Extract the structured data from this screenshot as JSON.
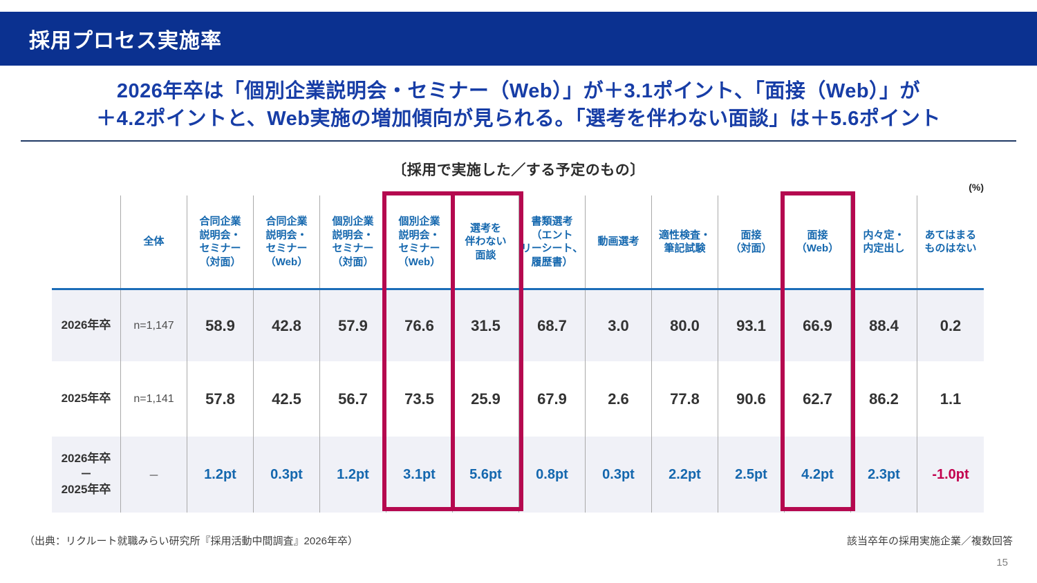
{
  "header": {
    "title": "採用プロセス実施率"
  },
  "headline": {
    "line1": "2026年卒は「個別企業説明会・セミナー（Web）」が＋3.1ポイント、「面接（Web）」が",
    "line2": "＋4.2ポイントと、Web実施の増加傾向が見られる。「選考を伴わない面談」は＋5.6ポイント"
  },
  "table": {
    "caption": "〔採用で実施した／する予定のもの〕",
    "unit_label": "(%)",
    "columns": [
      "全体",
      "合同企業\n説明会・\nセミナー\n（対面）",
      "合同企業\n説明会・\nセミナー\n（Web）",
      "個別企業\n説明会・\nセミナー\n（対面）",
      "個別企業\n説明会・\nセミナー\n（Web）",
      "選考を\n伴わない\n面談",
      "書類選考\n（エント\nリーシート、\n履歴書）",
      "動画選考",
      "適性検査・\n筆記試験",
      "面接\n（対面）",
      "面接\n（Web）",
      "内々定・\n内定出し",
      "あてはまる\nものはない"
    ],
    "highlighted_columns": [
      "個別企業説明会・セミナー（Web）",
      "選考を伴わない面談",
      "面接（Web）"
    ],
    "rows": [
      {
        "label": "2026年卒",
        "n": "n=1,147",
        "values": [
          "58.9",
          "42.8",
          "57.9",
          "76.6",
          "31.5",
          "68.7",
          "3.0",
          "80.0",
          "93.1",
          "66.9",
          "88.4",
          "0.2"
        ]
      },
      {
        "label": "2025年卒",
        "n": "n=1,141",
        "values": [
          "57.8",
          "42.5",
          "56.7",
          "73.5",
          "25.9",
          "67.9",
          "2.6",
          "77.8",
          "90.6",
          "62.7",
          "86.2",
          "1.1"
        ]
      },
      {
        "label": "2026年卒\n－\n2025年卒",
        "n": "－",
        "values": [
          "1.2pt",
          "0.3pt",
          "1.2pt",
          "3.1pt",
          "5.6pt",
          "0.8pt",
          "0.3pt",
          "2.2pt",
          "2.5pt",
          "4.2pt",
          "2.3pt",
          "-1.0pt"
        ]
      }
    ]
  },
  "footer": {
    "source": "（出典：リクルート就職みらい研究所『採用活動中間調査』2026年卒）",
    "note": "該当卒年の採用実施企業／複数回答",
    "page": "15"
  },
  "colors": {
    "brand_navy": "#0B3190",
    "heading_blue": "#173DA6",
    "table_header_blue": "#1467AE",
    "highlight_magenta": "#B5094F",
    "negative_red": "#C2014E",
    "row_alt_bg": "#F0F1F7"
  }
}
